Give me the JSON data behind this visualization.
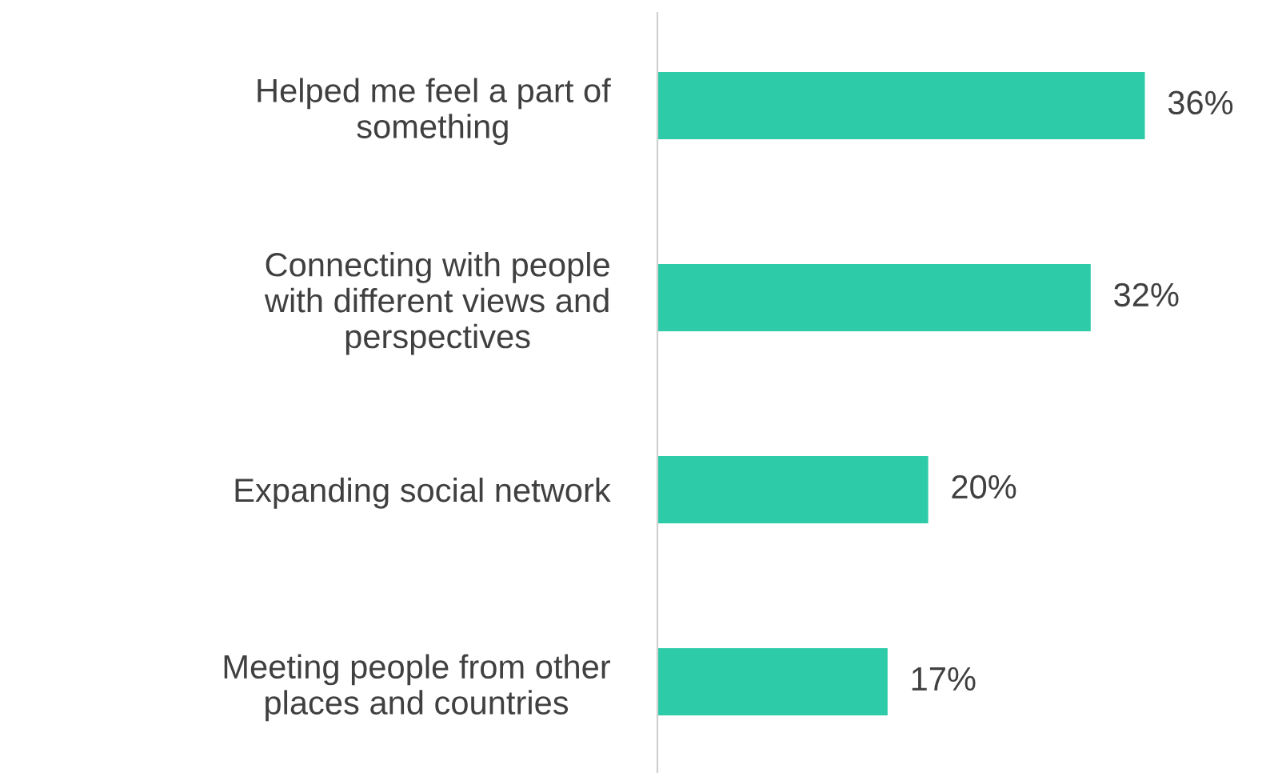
{
  "chart_data": {
    "type": "bar",
    "orientation": "horizontal",
    "categories": [
      "Helped me feel a part of\nsomething",
      "Connecting with people\nwith different views and\nperspectives",
      "Expanding social network",
      "Meeting people from other\nplaces and countries"
    ],
    "values": [
      36,
      32,
      20,
      17
    ],
    "value_labels": [
      "36%",
      "32%",
      "20%",
      "17%"
    ],
    "color": "#2ecba8",
    "grid": false,
    "legend": false,
    "tick_labels": "y"
  }
}
